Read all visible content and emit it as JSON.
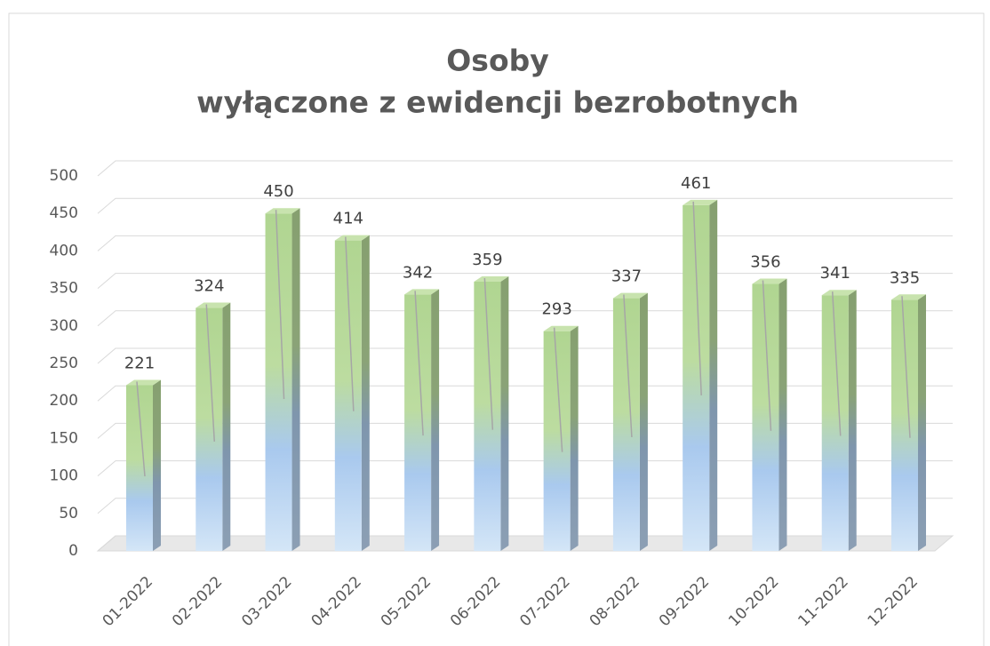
{
  "chart_data": {
    "type": "bar",
    "title": [
      "Osoby",
      "wyłączone z ewidencji bezrobotnych"
    ],
    "categories": [
      "01-2022",
      "02-2022",
      "03-2022",
      "04-2022",
      "05-2022",
      "06-2022",
      "07-2022",
      "08-2022",
      "09-2022",
      "10-2022",
      "11-2022",
      "12-2022"
    ],
    "values": [
      221,
      324,
      450,
      414,
      342,
      359,
      293,
      337,
      461,
      356,
      341,
      335
    ],
    "color": "#b5d69a",
    "ylim": [
      0,
      500
    ],
    "yticks": [
      0,
      50,
      100,
      150,
      200,
      250,
      300,
      350,
      400,
      450,
      500
    ],
    "grid": true
  }
}
